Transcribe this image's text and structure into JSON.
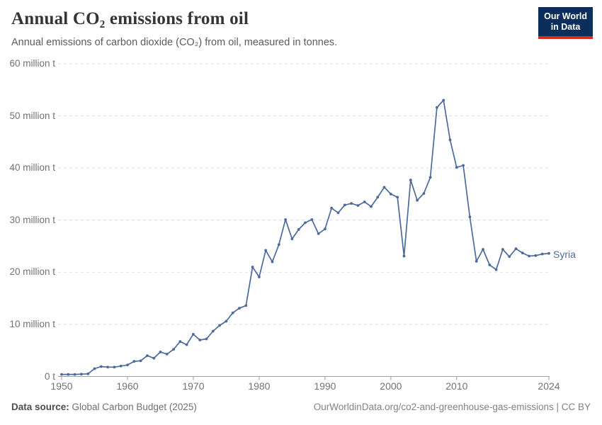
{
  "header": {
    "title": "Annual CO₂ emissions from oil",
    "subtitle": "Annual emissions of carbon dioxide (CO₂) from oil, measured in tonnes.",
    "logo": {
      "line1": "Our World",
      "line2": "in Data",
      "bg_color": "#0b2e5a",
      "accent_color": "#cf2e21"
    }
  },
  "chart_data": {
    "type": "line",
    "title": "Annual CO₂ emissions from oil",
    "xlabel": "",
    "ylabel": "",
    "ylim": [
      0,
      60
    ],
    "xlim": [
      1950,
      2024
    ],
    "grid": "horizontal-dashed",
    "legend_position": "end-of-line-label",
    "y_ticks": [
      {
        "value": 0,
        "label": "0 t"
      },
      {
        "value": 10,
        "label": "10 million t"
      },
      {
        "value": 20,
        "label": "20 million t"
      },
      {
        "value": 30,
        "label": "30 million t"
      },
      {
        "value": 40,
        "label": "40 million t"
      },
      {
        "value": 50,
        "label": "50 million t"
      },
      {
        "value": 60,
        "label": "60 million t"
      }
    ],
    "x_ticks": [
      {
        "value": 1950,
        "label": "1950"
      },
      {
        "value": 1960,
        "label": "1960"
      },
      {
        "value": 1970,
        "label": "1970"
      },
      {
        "value": 1980,
        "label": "1980"
      },
      {
        "value": 1990,
        "label": "1990"
      },
      {
        "value": 2000,
        "label": "2000"
      },
      {
        "value": 2010,
        "label": "2010"
      },
      {
        "value": 2024,
        "label": "2024"
      }
    ],
    "series": [
      {
        "name": "Syria",
        "color": "#4c6a9c",
        "unit": "million tonnes",
        "years": [
          1950,
          1951,
          1952,
          1953,
          1954,
          1955,
          1956,
          1957,
          1958,
          1959,
          1960,
          1961,
          1962,
          1963,
          1964,
          1965,
          1966,
          1967,
          1968,
          1969,
          1970,
          1971,
          1972,
          1973,
          1974,
          1975,
          1976,
          1977,
          1978,
          1979,
          1980,
          1981,
          1982,
          1983,
          1984,
          1985,
          1986,
          1987,
          1988,
          1989,
          1990,
          1991,
          1992,
          1993,
          1994,
          1995,
          1996,
          1997,
          1998,
          1999,
          2000,
          2001,
          2002,
          2003,
          2004,
          2005,
          2006,
          2007,
          2008,
          2009,
          2010,
          2011,
          2012,
          2013,
          2014,
          2015,
          2016,
          2017,
          2018,
          2019,
          2020,
          2021,
          2022,
          2023,
          2024
        ],
        "values": [
          0.4,
          0.4,
          0.4,
          0.45,
          0.5,
          1.5,
          1.9,
          1.8,
          1.8,
          2.0,
          2.2,
          2.9,
          3.0,
          4.0,
          3.5,
          4.7,
          4.3,
          5.2,
          6.7,
          6.1,
          8.1,
          7.0,
          7.2,
          8.7,
          9.8,
          10.6,
          12.2,
          13.1,
          13.6,
          21.0,
          19.1,
          24.2,
          22.0,
          25.3,
          30.1,
          26.4,
          28.2,
          29.5,
          30.1,
          27.4,
          28.3,
          32.3,
          31.4,
          32.9,
          33.2,
          32.8,
          33.5,
          32.6,
          34.4,
          36.3,
          35.0,
          34.4,
          23.1,
          37.7,
          33.8,
          35.1,
          38.2,
          51.6,
          53.0,
          45.4,
          40.1,
          40.5,
          30.6,
          22.1,
          24.4,
          21.4,
          20.5,
          24.4,
          23.0,
          24.5,
          23.7,
          23.1,
          23.2,
          23.5,
          23.6
        ]
      }
    ]
  },
  "footer": {
    "source_label": "Data source:",
    "source_value": " Global Carbon Budget (2025)",
    "link": "OurWorldinData.org/co2-and-greenhouse-gas-emissions",
    "separator": " | ",
    "license": "CC BY"
  }
}
